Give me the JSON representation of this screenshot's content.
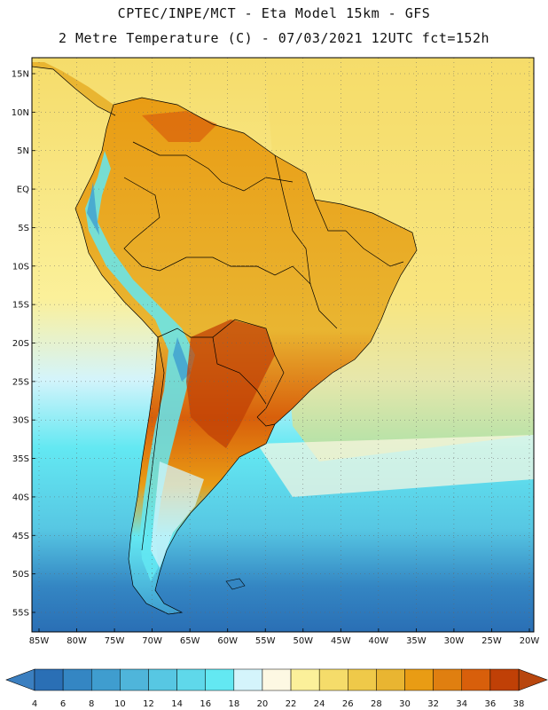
{
  "header": {
    "line1": "CPTEC/INPE/MCT -  Eta Model 15km - GFS",
    "line2": "2 Metre Temperature (C) - 07/03/2021 12UTC fct=152h"
  },
  "map": {
    "region": "South America",
    "lat_labels": [
      "15N",
      "10N",
      "5N",
      "EQ",
      "5S",
      "10S",
      "15S",
      "20S",
      "25S",
      "30S",
      "35S",
      "40S",
      "45S",
      "50S",
      "55S"
    ],
    "lon_labels": [
      "85W",
      "80W",
      "75W",
      "70W",
      "65W",
      "60W",
      "55W",
      "50W",
      "45W",
      "40W",
      "35W",
      "30W",
      "25W",
      "20W"
    ]
  },
  "colorbar": {
    "labels": [
      "4",
      "6",
      "8",
      "10",
      "12",
      "14",
      "16",
      "18",
      "20",
      "22",
      "24",
      "26",
      "28",
      "30",
      "32",
      "34",
      "36",
      "38"
    ],
    "colors": [
      "#2a6fb5",
      "#3486c3",
      "#3f9dcf",
      "#4fb5da",
      "#57c7e3",
      "#5fd8ea",
      "#63e8f2",
      "#d4f4fb",
      "#fdf8e3",
      "#fbf09a",
      "#f5dc6a",
      "#efc949",
      "#e9b531",
      "#e99c14",
      "#e07f10",
      "#d85f0b",
      "#c04006"
    ],
    "under_color": "#3b7fc0",
    "over_color": "#b8460e"
  }
}
